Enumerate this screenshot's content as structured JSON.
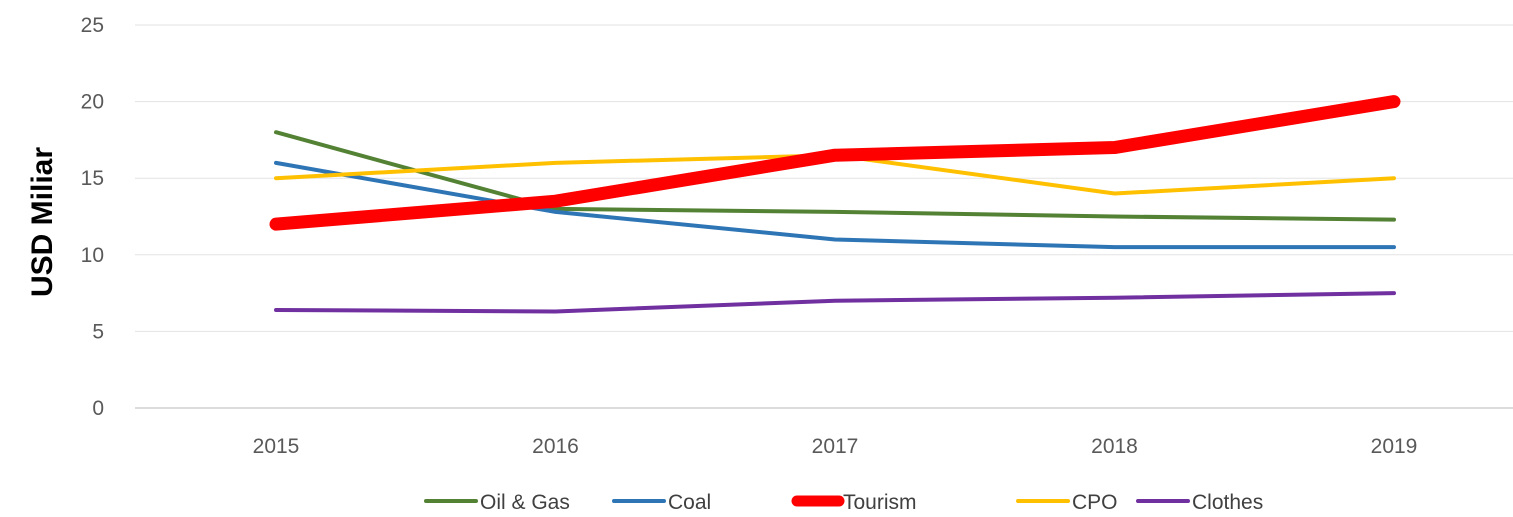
{
  "chart_data": {
    "type": "line",
    "title": "",
    "xlabel": "",
    "ylabel": "USD Miliar",
    "categories": [
      "2015",
      "2016",
      "2017",
      "2018",
      "2019"
    ],
    "y_ticks": [
      "0",
      "5",
      "10",
      "15",
      "20",
      "25"
    ],
    "ylim": [
      0,
      25
    ],
    "grid": "horizontal",
    "legend_position": "bottom",
    "series": [
      {
        "name": "Oil & Gas",
        "color": "#548235",
        "values": [
          18,
          13,
          12.8,
          12.5,
          12.3
        ]
      },
      {
        "name": "Coal",
        "color": "#2E75B6",
        "values": [
          16,
          12.8,
          11,
          10.5,
          10.5
        ]
      },
      {
        "name": "Tourism",
        "color": "#FF0000",
        "values": [
          12,
          13.5,
          16.5,
          17,
          20
        ],
        "emphasized": true
      },
      {
        "name": "CPO",
        "color": "#FFC000",
        "values": [
          15,
          16,
          16.5,
          14,
          15
        ]
      },
      {
        "name": "Clothes",
        "color": "#7030A0",
        "values": [
          6.4,
          6.3,
          7,
          7.2,
          7.5
        ]
      }
    ]
  }
}
